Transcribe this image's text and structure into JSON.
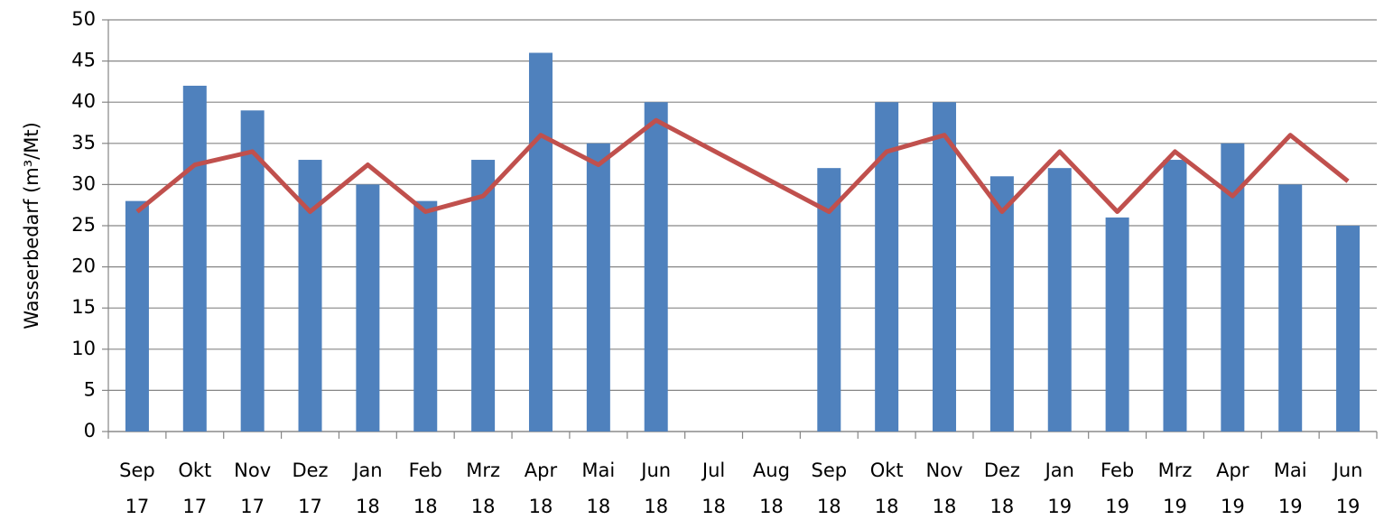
{
  "chart_data": {
    "type": "bar_line",
    "y_label": "Wasserbedarf (m³/Mt)",
    "categories": [
      "Sep 17",
      "Okt 17",
      "Nov 17",
      "Dez 17",
      "Jan 18",
      "Feb 18",
      "Mrz 18",
      "Apr 18",
      "Mai 18",
      "Jun 18",
      "Jul 18",
      "Aug 18",
      "Sep 18",
      "Okt 18",
      "Nov 18",
      "Dez 18",
      "Jan 19",
      "Feb 19",
      "Mrz 19",
      "Apr 19",
      "Mai 19",
      "Jun 19"
    ],
    "series": [
      {
        "type": "bar",
        "color": "#4f81bd",
        "values": [
          28,
          42,
          39,
          33,
          30,
          28,
          33,
          46,
          35,
          40,
          null,
          null,
          32,
          40,
          40,
          31,
          32,
          26,
          33,
          35,
          30,
          25
        ]
      },
      {
        "type": "line",
        "color": "#c0504d",
        "values": [
          26.7,
          32.4,
          34,
          26.7,
          32.4,
          26.7,
          28.6,
          36,
          32.4,
          37.8,
          34.1,
          30.4,
          26.7,
          34,
          36,
          26.7,
          34,
          26.7,
          34,
          28.6,
          36,
          30.4
        ]
      }
    ],
    "ylim": [
      0,
      50
    ],
    "yticks": [
      0,
      5,
      10,
      15,
      20,
      25,
      30,
      35,
      40,
      45,
      50
    ],
    "grid": true
  }
}
